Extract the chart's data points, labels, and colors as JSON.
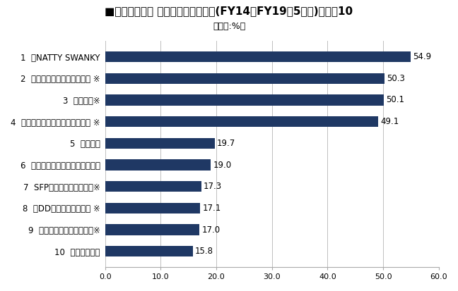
{
  "title_line1": "■外食上場企業 年平均売上高伸び率(FY14～FY19・5ヶ年)ベスト10",
  "title_line2": "（単位:%）",
  "categories": [
    "1  ㎏NATTY SWANKY",
    "2  ㎏ペッパーフードサービス ※",
    "3  ㎏ギフト※",
    "4  ㎏串カツ田中ホールディングス ※",
    "5  ㎏鳥貴族",
    "6  ユナイテッド＆コレクティブ㎏",
    "7  SFPホールディングス㎏※",
    "8  ㎏DDホールディングス ※",
    "9  ㎏物語コーポレーション※",
    "10  ㎏ヨシックス"
  ],
  "values": [
    54.9,
    50.3,
    50.1,
    49.1,
    19.7,
    19.0,
    17.3,
    17.1,
    17.0,
    15.8
  ],
  "bar_color": "#1f3864",
  "background_color": "#ffffff",
  "xlim": [
    0,
    60
  ],
  "xticks": [
    0.0,
    10.0,
    20.0,
    30.0,
    40.0,
    50.0,
    60.0
  ],
  "grid_color": "#c0c0c0",
  "label_fontsize": 8.5,
  "value_fontsize": 8.5,
  "title_fontsize": 11,
  "subtitle_fontsize": 9,
  "bar_height": 0.5
}
